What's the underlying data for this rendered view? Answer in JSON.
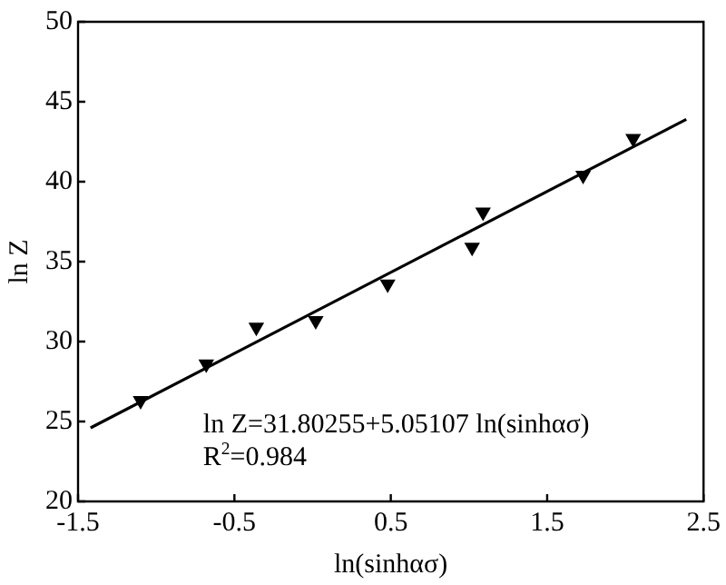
{
  "chart_data": {
    "type": "scatter",
    "xlabel": "ln(sinhασ)",
    "ylabel": "ln Z",
    "xlim": [
      -1.5,
      2.5
    ],
    "xticks": [
      -1.5,
      -0.5,
      0.5,
      1.5,
      2.5
    ],
    "ylim": [
      20,
      50
    ],
    "yticks": [
      20,
      25,
      30,
      35,
      40,
      45,
      50
    ],
    "grid": false,
    "legend": false,
    "series": [
      {
        "marker": "triangle",
        "color": "#000000",
        "x": [
          -1.1,
          -0.68,
          -0.36,
          0.02,
          0.48,
          1.02,
          1.09,
          1.73,
          2.05
        ],
        "values": [
          26.3,
          28.6,
          30.9,
          31.3,
          33.6,
          35.9,
          38.1,
          40.4,
          42.7
        ]
      },
      {
        "type": "line",
        "marker": "none",
        "color": "#000000",
        "x": [
          -1.42,
          2.39
        ],
        "values": [
          24.6,
          43.9
        ]
      }
    ],
    "annotations": [
      "ln Z=31.80255+5.05107 ln(sinhασ)",
      "R$^{2}$=0.984"
    ]
  }
}
